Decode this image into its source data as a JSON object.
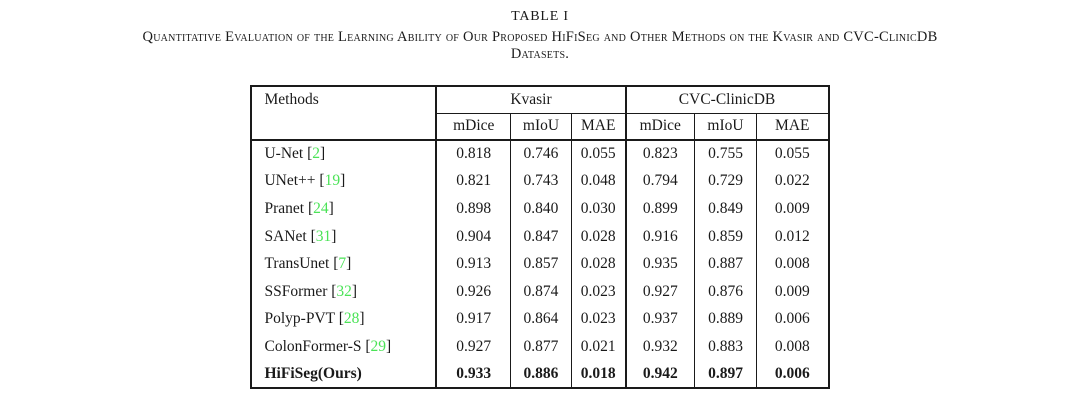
{
  "page": {
    "title": "TABLE I",
    "caption_line1": "Quantitative Evaluation of the Learning Ability of Our Proposed HiFiSeg and Other Methods on the Kvasir and CVC-ClinicDB",
    "caption_line2": "Datasets."
  },
  "colors": {
    "background": "#ffffff",
    "text": "#1a1a1a",
    "border": "#1a1a1a",
    "citation_green": "#4be357"
  },
  "table": {
    "header": {
      "methods": "Methods",
      "groups": [
        {
          "label": "Kvasir",
          "span": 3
        },
        {
          "label": "CVC-ClinicDB",
          "span": 3
        }
      ],
      "sub": [
        "mDice",
        "mIoU",
        "MAE",
        "mDice",
        "mIoU",
        "MAE"
      ]
    },
    "rows": [
      {
        "method": "U-Net",
        "citation": "2",
        "bold": false,
        "values": [
          "0.818",
          "0.746",
          "0.055",
          "0.823",
          "0.755",
          "0.055"
        ]
      },
      {
        "method": "UNet++",
        "citation": "19",
        "bold": false,
        "values": [
          "0.821",
          "0.743",
          "0.048",
          "0.794",
          "0.729",
          "0.022"
        ]
      },
      {
        "method": "Pranet",
        "citation": "24",
        "bold": false,
        "values": [
          "0.898",
          "0.840",
          "0.030",
          "0.899",
          "0.849",
          "0.009"
        ]
      },
      {
        "method": "SANet",
        "citation": "31",
        "bold": false,
        "values": [
          "0.904",
          "0.847",
          "0.028",
          "0.916",
          "0.859",
          "0.012"
        ]
      },
      {
        "method": "TransUnet",
        "citation": "7",
        "bold": false,
        "values": [
          "0.913",
          "0.857",
          "0.028",
          "0.935",
          "0.887",
          "0.008"
        ]
      },
      {
        "method": "SSFormer",
        "citation": "32",
        "bold": false,
        "values": [
          "0.926",
          "0.874",
          "0.023",
          "0.927",
          "0.876",
          "0.009"
        ]
      },
      {
        "method": "Polyp-PVT",
        "citation": "28",
        "bold": false,
        "values": [
          "0.917",
          "0.864",
          "0.023",
          "0.937",
          "0.889",
          "0.006"
        ]
      },
      {
        "method": "ColonFormer-S",
        "citation": "29",
        "bold": false,
        "values": [
          "0.927",
          "0.877",
          "0.021",
          "0.932",
          "0.883",
          "0.008"
        ]
      },
      {
        "method": "HiFiSeg(Ours)",
        "citation": null,
        "bold": true,
        "values": [
          "0.933",
          "0.886",
          "0.018",
          "0.942",
          "0.897",
          "0.006"
        ]
      }
    ]
  }
}
